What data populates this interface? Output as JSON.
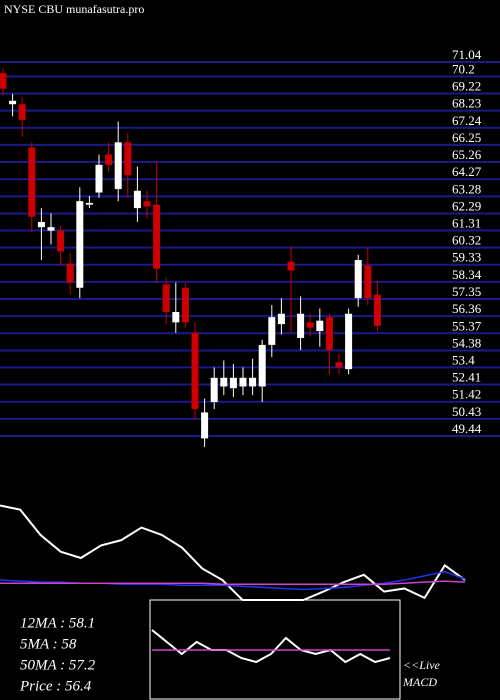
{
  "chart_data": {
    "type": "candlestick",
    "title": "NYSE CBU munafasutra.pro",
    "ylim": [
      48.63,
      74.62
    ],
    "yticks": [
      71.04,
      70.2,
      69.22,
      68.23,
      67.24,
      66.25,
      65.26,
      64.27,
      63.28,
      62.29,
      61.31,
      60.32,
      59.33,
      58.34,
      57.35,
      56.36,
      55.37,
      54.38,
      53.4,
      52.41,
      51.42,
      50.43,
      49.44
    ],
    "grid_color": "#1a1a8c",
    "up_color": "#ffffff",
    "down_color": "#cc0000",
    "open": [
      70.4,
      68.6,
      68.6,
      66.1,
      61.5,
      61.3,
      61.3,
      59.4,
      58.0,
      62.8,
      63.5,
      65.7,
      63.7,
      66.4,
      62.6,
      63.0,
      62.8,
      58.2,
      56.0,
      58.0,
      55.4,
      49.3,
      51.4,
      52.3,
      52.2,
      52.3,
      52.3,
      52.3,
      54.7,
      55.9,
      59.5,
      55.1,
      56.0,
      55.5,
      56.3,
      53.7,
      53.3,
      57.4,
      59.3,
      57.6
    ],
    "high": [
      70.7,
      69.2,
      69.0,
      66.4,
      62.6,
      62.3,
      61.6,
      60.0,
      63.8,
      63.3,
      65.7,
      66.4,
      67.6,
      66.9,
      65.0,
      63.6,
      65.3,
      58.6,
      58.3,
      58.3,
      56.0,
      51.6,
      53.4,
      53.8,
      53.6,
      53.4,
      53.9,
      55.0,
      57.0,
      57.4,
      60.4,
      57.5,
      56.5,
      56.8,
      56.5,
      54.2,
      56.8,
      59.9,
      60.3,
      58.4
    ],
    "low": [
      69.1,
      67.9,
      66.7,
      61.2,
      59.6,
      60.5,
      59.3,
      57.6,
      57.4,
      62.6,
      63.2,
      64.7,
      63.0,
      63.2,
      61.8,
      62.0,
      58.3,
      55.9,
      55.4,
      55.7,
      50.4,
      48.8,
      51.0,
      51.8,
      51.7,
      51.8,
      51.8,
      51.4,
      54.0,
      55.3,
      55.4,
      54.4,
      55.2,
      54.6,
      53.0,
      53.0,
      53.0,
      56.9,
      57.0,
      55.5
    ],
    "close": [
      69.5,
      68.8,
      67.7,
      62.1,
      61.8,
      61.5,
      60.1,
      58.3,
      63.0,
      62.9,
      65.1,
      65.1,
      66.4,
      64.5,
      63.6,
      62.7,
      59.1,
      56.6,
      56.6,
      56.0,
      51.0,
      50.8,
      52.8,
      52.8,
      52.8,
      52.8,
      52.8,
      54.7,
      56.3,
      56.5,
      59.0,
      56.5,
      55.7,
      56.1,
      54.4,
      53.4,
      56.5,
      59.6,
      57.4,
      55.8
    ],
    "indicator": {
      "ylim": [
        0,
        100
      ],
      "series": [
        {
          "color": "#ffffff",
          "values": [
            90,
            86,
            62,
            46,
            40,
            52,
            57,
            69,
            62,
            50,
            30,
            19,
            0,
            0,
            0,
            0,
            8,
            17,
            24,
            8,
            11,
            2,
            33,
            19
          ]
        },
        {
          "color": "#2233ee",
          "values": [
            19,
            18,
            17,
            17,
            16,
            16,
            15,
            15,
            15,
            14,
            14,
            14,
            13,
            12,
            11,
            10,
            11,
            12,
            14,
            16,
            19,
            23,
            27,
            20
          ]
        },
        {
          "color": "#cc44cc",
          "values": [
            16,
            16,
            16,
            16,
            16,
            16,
            16,
            16,
            16,
            16,
            16,
            15,
            15,
            15,
            15,
            15,
            15,
            15,
            15,
            15,
            16,
            17,
            18,
            17
          ]
        }
      ]
    },
    "macd": {
      "ylim": [
        -1,
        1
      ],
      "series": [
        {
          "color": "#ffffff",
          "values": [
            0.5,
            0.2,
            -0.1,
            0.2,
            0,
            0,
            -0.2,
            -0.3,
            -0.1,
            0.3,
            0,
            -0.1,
            0,
            -0.3,
            -0.1,
            -0.3,
            -0.2
          ]
        },
        {
          "color": "#cc44cc",
          "values": [
            0,
            0,
            0,
            0,
            0,
            0,
            0,
            0,
            0,
            0,
            0,
            0,
            0,
            0,
            0,
            0,
            0
          ]
        }
      ]
    },
    "stats": [
      "12MA : 58.1",
      "5MA : 58",
      "50MA : 57.2",
      "Price   : 56.4"
    ],
    "live": "<<Live",
    "macd_label": "MACD"
  }
}
